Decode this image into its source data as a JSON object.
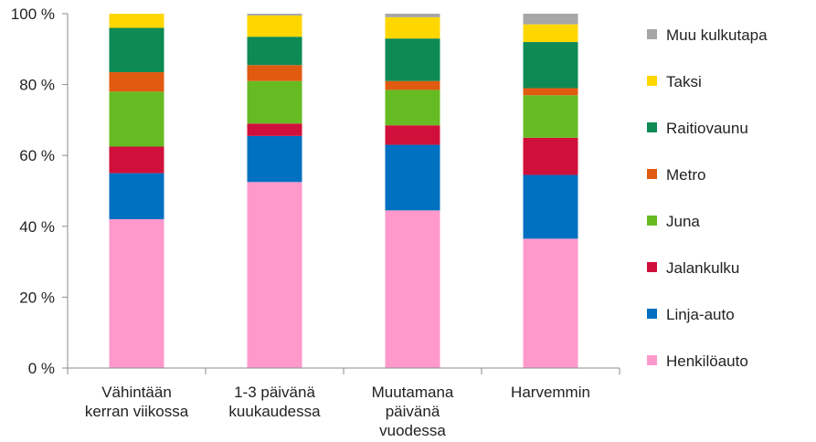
{
  "chart_data": {
    "type": "bar",
    "stacked": true,
    "percent": true,
    "title": "",
    "xlabel": "",
    "ylabel": "",
    "ylim": [
      0,
      100
    ],
    "y_ticks": [
      0,
      20,
      40,
      60,
      80,
      100
    ],
    "y_tick_labels": [
      "0 %",
      "20 %",
      "40 %",
      "60 %",
      "80 %",
      "100 %"
    ],
    "grid": false,
    "legend_position": "right",
    "categories": [
      [
        "Vähintään",
        "kerran viikossa"
      ],
      [
        "1-3 päivänä",
        "kuukaudessa"
      ],
      [
        "Muutamana",
        "päivänä",
        "vuodessa"
      ],
      [
        "Harvemmin"
      ]
    ],
    "series": [
      {
        "name": "Henkilöauto",
        "color": "#ff99cc",
        "values": [
          42,
          52.5,
          44.5,
          36.5
        ]
      },
      {
        "name": "Linja-auto",
        "color": "#0070c0",
        "values": [
          13,
          13,
          18.5,
          18
        ]
      },
      {
        "name": "Jalankulku",
        "color": "#d0103a",
        "values": [
          7.5,
          3.5,
          5.5,
          10.5
        ]
      },
      {
        "name": "Juna",
        "color": "#66bb22",
        "values": [
          15.5,
          12,
          10,
          12
        ]
      },
      {
        "name": "Metro",
        "color": "#e05a10",
        "values": [
          5.5,
          4.5,
          2.5,
          2
        ]
      },
      {
        "name": "Raitiovaunu",
        "color": "#0e8a55",
        "values": [
          12.5,
          8,
          12,
          13
        ]
      },
      {
        "name": "Taksi",
        "color": "#ffd700",
        "values": [
          4,
          6,
          6,
          5
        ]
      },
      {
        "name": "Muu kulkutapa",
        "color": "#a6a6a6",
        "values": [
          0,
          0.5,
          1,
          3
        ]
      }
    ]
  }
}
